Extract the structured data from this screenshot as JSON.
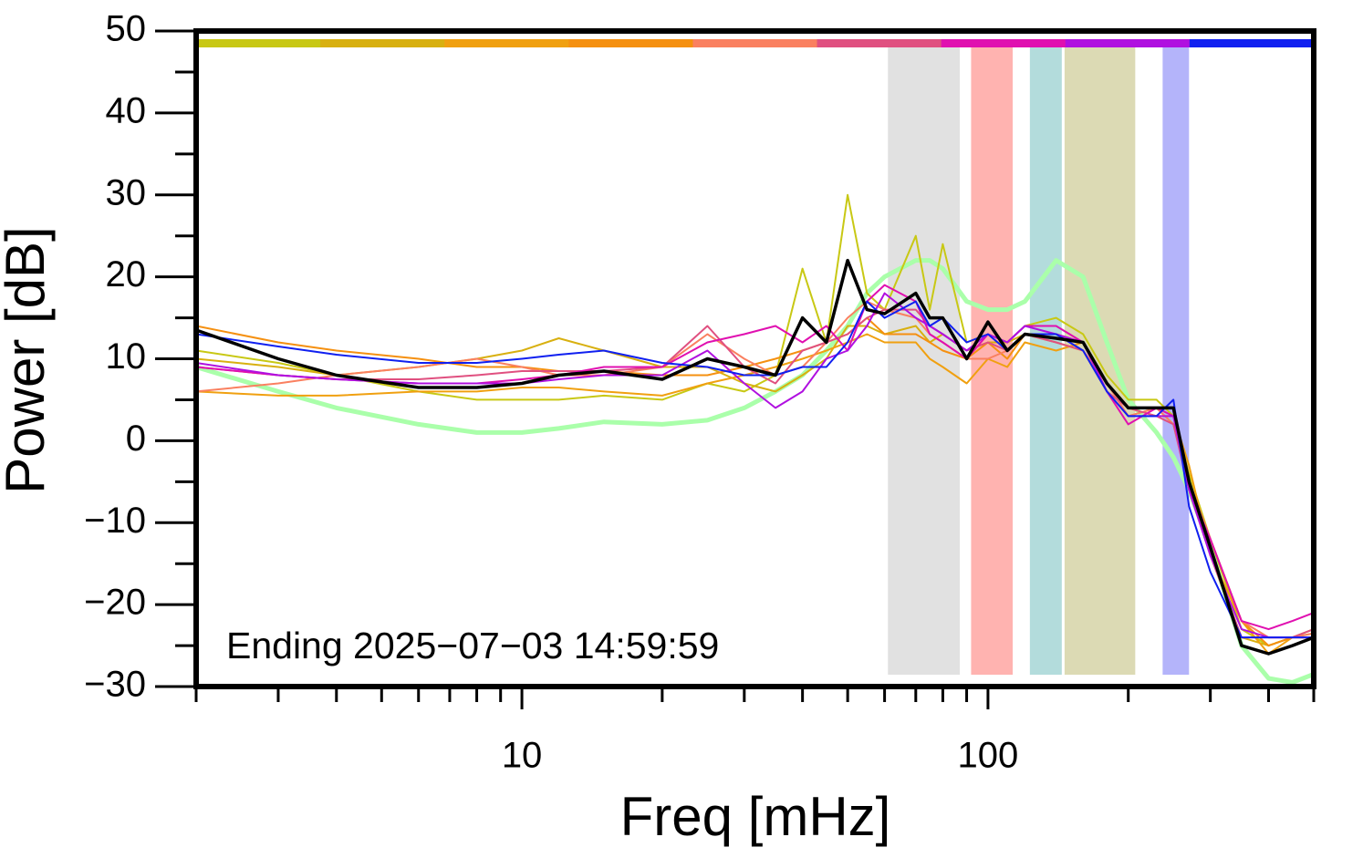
{
  "chart_data": {
    "type": "line",
    "xlabel": "Freq [mHz]",
    "ylabel": "Power [dB]",
    "annotation": "Ending 2025−07−03 14:59:59",
    "xscale": "log",
    "xlim": [
      2,
      500
    ],
    "ylim": [
      -30,
      50
    ],
    "xticks": [
      10,
      100
    ],
    "xminorticks": [
      2,
      3,
      4,
      5,
      6,
      7,
      8,
      9,
      20,
      30,
      40,
      50,
      60,
      70,
      80,
      90,
      200,
      300,
      400,
      500
    ],
    "yticks": [
      {
        "value": -30,
        "label": "−30"
      },
      {
        "value": -20,
        "label": "−20"
      },
      {
        "value": -10,
        "label": "−10"
      },
      0,
      10,
      20,
      30,
      40,
      50
    ],
    "yminorticks": [
      -25,
      -15,
      -5,
      5,
      15,
      25,
      35,
      45
    ],
    "bands": [
      {
        "x": [
          61,
          87
        ],
        "color": "#e1e1e1"
      },
      {
        "x": [
          92,
          113
        ],
        "color": "#ffb3b0"
      },
      {
        "x": [
          123,
          144
        ],
        "color": "#b3dcdc"
      },
      {
        "x": [
          146,
          207
        ],
        "color": "#dcdab4"
      },
      {
        "x": [
          237,
          270
        ],
        "color": "#b4b4fa"
      }
    ],
    "x": [
      2,
      3,
      4,
      6,
      8,
      10,
      12,
      15,
      20,
      25,
      30,
      35,
      40,
      45,
      50,
      55,
      60,
      70,
      75,
      80,
      90,
      100,
      110,
      120,
      140,
      160,
      180,
      200,
      230,
      250,
      270,
      300,
      350,
      400,
      450,
      500
    ],
    "series": [
      {
        "color": "#c8c814",
        "values": [
          11,
          9.5,
          8,
          6,
          5,
          5,
          5,
          5.5,
          5,
          7,
          6,
          8,
          21,
          12,
          30,
          18,
          16,
          25,
          16,
          24,
          12,
          13,
          12,
          14,
          15,
          13,
          8,
          5,
          5,
          3,
          -4,
          -12,
          -23,
          -25,
          -24,
          -23
        ]
      },
      {
        "color": "#d8b010",
        "values": [
          10,
          9,
          8,
          9,
          10,
          11,
          12.5,
          11,
          9,
          9,
          7,
          6,
          8,
          10,
          14,
          14,
          13,
          14,
          12,
          13,
          11,
          12,
          12,
          13,
          12,
          11,
          6,
          3,
          4,
          2,
          -5,
          -14,
          -24,
          -25,
          -24,
          -23.5
        ]
      },
      {
        "color": "#f0a010",
        "values": [
          6,
          5.5,
          5.5,
          6,
          6,
          6.5,
          6.5,
          6,
          5.5,
          7,
          8,
          9,
          10,
          11,
          12,
          13,
          12,
          12,
          10,
          9,
          7,
          10,
          9,
          12,
          11,
          12,
          7,
          4,
          3,
          3,
          -3,
          -14,
          -22,
          -26,
          -24,
          -24
        ]
      },
      {
        "color": "#f59010",
        "values": [
          14,
          12,
          11,
          10,
          9,
          9,
          8.5,
          8.5,
          8,
          8,
          9,
          10,
          11,
          12,
          13,
          15,
          13,
          13,
          12,
          11,
          10,
          12,
          10,
          13,
          13,
          12,
          7,
          4,
          4,
          4,
          -5,
          -12,
          -22,
          -25,
          -24,
          -24
        ]
      },
      {
        "color": "#fa8060",
        "values": [
          6,
          7,
          8,
          9,
          10,
          9,
          8,
          8,
          9,
          13,
          10,
          8,
          9,
          12,
          15,
          17,
          16,
          15,
          13,
          12,
          10,
          10,
          11,
          13,
          13,
          11,
          7,
          3,
          4,
          2,
          -5,
          -12,
          -22,
          -24,
          -24,
          -23.5
        ]
      },
      {
        "color": "#e05080",
        "values": [
          9,
          8,
          7.5,
          7.5,
          8,
          8.5,
          8.5,
          8.5,
          9,
          14,
          9,
          7,
          11,
          12,
          13,
          15,
          16,
          16,
          14,
          13,
          11,
          12,
          11,
          13,
          12,
          11,
          6,
          4,
          3,
          2,
          -6,
          -14,
          -24,
          -24,
          -24,
          -23
        ]
      },
      {
        "color": "#e010b0",
        "values": [
          9,
          8,
          7.5,
          7,
          7,
          7.5,
          8,
          9,
          9,
          12,
          13,
          14,
          12,
          14,
          11,
          17,
          19,
          17,
          13,
          12,
          10,
          13,
          12,
          14,
          14,
          12,
          6,
          2,
          4,
          3,
          -6,
          -12,
          -22,
          -23,
          -22,
          -21
        ]
      },
      {
        "color": "#b010e0",
        "values": [
          9.5,
          8,
          7.5,
          7,
          7,
          7,
          7.5,
          8,
          8,
          11,
          7,
          4,
          6,
          10,
          11,
          14,
          18,
          15,
          14,
          13,
          11,
          13,
          12,
          14,
          13,
          12,
          6,
          3,
          3,
          3,
          -6,
          -14,
          -23,
          -24,
          -24,
          -24
        ]
      },
      {
        "color": "#1020f0",
        "values": [
          13,
          11.5,
          10.5,
          9.5,
          9.5,
          10,
          10.5,
          11,
          9.5,
          9,
          8,
          8,
          9,
          9,
          12,
          17,
          15,
          17,
          14,
          15,
          12,
          13,
          11,
          13,
          13,
          11,
          6,
          3,
          3,
          5,
          -8,
          -16,
          -24,
          -24,
          -24,
          -24
        ]
      }
    ],
    "baseline": {
      "color": "#aaffaa",
      "values": [
        9,
        6,
        4,
        2,
        1,
        1,
        1.5,
        2.3,
        2,
        2.5,
        4,
        6,
        8,
        11,
        14,
        18,
        20,
        22,
        22,
        21,
        17,
        16,
        16,
        17,
        22,
        20,
        12,
        5,
        1,
        -2,
        -6,
        -13,
        -25,
        -29,
        -29.5,
        -28.5
      ]
    },
    "mean": {
      "color": "#000000",
      "values": [
        13.5,
        10,
        8,
        6.5,
        6.5,
        7,
        8,
        8.5,
        7.5,
        10,
        9,
        8,
        15,
        12,
        22,
        16,
        15.5,
        18,
        15,
        15,
        10,
        14.5,
        11,
        13,
        12.5,
        12,
        7,
        4,
        4,
        4,
        -5,
        -13,
        -25,
        -26,
        -25,
        -24
      ]
    }
  }
}
